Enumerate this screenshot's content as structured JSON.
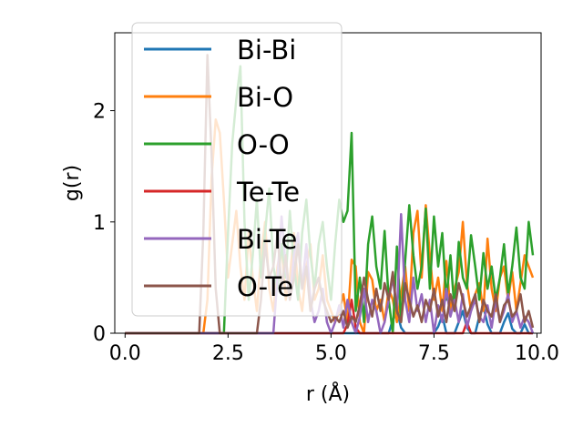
{
  "chart_data": {
    "type": "line",
    "xlabel": "r (Å)",
    "ylabel": "g(r)",
    "xlim": [
      -0.25,
      10.1
    ],
    "ylim": [
      0,
      2.7
    ],
    "xticks": [
      "0.0",
      "2.5",
      "5.0",
      "7.5",
      "10.0"
    ],
    "yticks": [
      "0",
      "1",
      "2"
    ],
    "grid": false,
    "legend_position": "upper-left",
    "x": [
      0.0,
      0.1,
      0.2,
      0.3,
      0.4,
      0.5,
      0.6,
      0.7,
      0.8,
      0.9,
      1.0,
      1.1,
      1.2,
      1.3,
      1.4,
      1.5,
      1.6,
      1.7,
      1.8,
      1.9,
      2.0,
      2.1,
      2.2,
      2.3,
      2.4,
      2.5,
      2.6,
      2.7,
      2.8,
      2.9,
      3.0,
      3.1,
      3.2,
      3.3,
      3.4,
      3.5,
      3.6,
      3.7,
      3.8,
      3.9,
      4.0,
      4.1,
      4.2,
      4.3,
      4.4,
      4.5,
      4.6,
      4.7,
      4.8,
      4.9,
      5.0,
      5.1,
      5.2,
      5.3,
      5.4,
      5.5,
      5.6,
      5.7,
      5.8,
      5.9,
      6.0,
      6.1,
      6.2,
      6.3,
      6.4,
      6.5,
      6.6,
      6.7,
      6.8,
      6.9,
      7.0,
      7.1,
      7.2,
      7.3,
      7.4,
      7.5,
      7.6,
      7.7,
      7.8,
      7.9,
      8.0,
      8.1,
      8.2,
      8.3,
      8.4,
      8.5,
      8.6,
      8.7,
      8.8,
      8.9,
      9.0,
      9.1,
      9.2,
      9.3,
      9.4,
      9.5,
      9.6,
      9.7,
      9.8,
      9.9
    ],
    "series": [
      {
        "name": "Bi-Bi",
        "color": "#1f77b4",
        "values": [
          0,
          0,
          0,
          0,
          0,
          0,
          0,
          0,
          0,
          0,
          0,
          0,
          0,
          0,
          0,
          0,
          0,
          0,
          0,
          0,
          0,
          0,
          0,
          0,
          0,
          0,
          0,
          0,
          0,
          0,
          0,
          0,
          0,
          0,
          0,
          0,
          0,
          0,
          0,
          0,
          0,
          0,
          0,
          0,
          0,
          0,
          0,
          0,
          0,
          0,
          0,
          0,
          0,
          0,
          0,
          0,
          0,
          0,
          0,
          0,
          0,
          0,
          0,
          0,
          0,
          0.12,
          0.2,
          0.05,
          0,
          0,
          0,
          0,
          0,
          0,
          0,
          0,
          0.06,
          0.16,
          0,
          0,
          0,
          0.1,
          0.2,
          0.05,
          0,
          0,
          0.15,
          0.24,
          0.08,
          0,
          0,
          0,
          0.1,
          0.18,
          0.04,
          0,
          0,
          0.08,
          0,
          0
        ]
      },
      {
        "name": "Bi-O",
        "color": "#ff7f0e",
        "values": [
          0,
          0,
          0,
          0,
          0,
          0,
          0,
          0,
          0,
          0,
          0,
          0,
          0,
          0,
          0,
          0,
          0,
          0,
          0,
          0,
          0.3,
          1.4,
          1.92,
          1.8,
          1.2,
          0.5,
          0.8,
          1.1,
          0.6,
          0.3,
          0.9,
          0.5,
          0.2,
          0.7,
          1.0,
          0.4,
          0.2,
          0.6,
          0.8,
          0.3,
          0.5,
          0.9,
          0.4,
          0.2,
          0.6,
          0.8,
          0.3,
          0.4,
          0.7,
          0.3,
          0.2,
          0.1,
          0.2,
          0.35,
          0.1,
          0.66,
          0.6,
          0.1,
          0,
          0.55,
          0.48,
          0.2,
          0.3,
          0.1,
          0.4,
          0.3,
          0.1,
          0.35,
          0.6,
          0.2,
          0.9,
          1.1,
          0.5,
          1.15,
          0.7,
          0.3,
          0.5,
          0.2,
          0.65,
          0.2,
          0.4,
          0.55,
          1.0,
          0.45,
          0.2,
          0.35,
          0.45,
          0.2,
          0.85,
          0.4,
          0.2,
          0.5,
          0.6,
          0.3,
          0.55,
          0.2,
          0.45,
          0.7,
          0.6,
          0.5
        ]
      },
      {
        "name": "O-O",
        "color": "#2ca02c",
        "values": [
          0,
          0,
          0,
          0,
          0,
          0,
          0,
          0,
          0,
          0,
          0,
          0,
          0,
          0,
          0,
          0,
          0,
          0,
          0,
          0,
          0,
          0,
          0,
          0,
          0,
          0.9,
          1.7,
          2.1,
          2.4,
          1.0,
          0.3,
          0.7,
          1.2,
          0.5,
          0.9,
          1.3,
          0.6,
          0.4,
          0.8,
          0.5,
          1.1,
          0.6,
          0.3,
          0.9,
          1.2,
          0.7,
          0.4,
          0.8,
          1.0,
          0.6,
          0.3,
          0.8,
          1.2,
          1.0,
          1.1,
          1.8,
          0.2,
          0.5,
          0.1,
          0.8,
          1.05,
          0.6,
          0.4,
          0.92,
          0.3,
          0.0,
          0.78,
          0.1,
          0.65,
          1.15,
          0.7,
          0.4,
          0.6,
          1.12,
          0.4,
          1.05,
          0.6,
          0.9,
          0.3,
          0.7,
          0.2,
          0.82,
          0.5,
          0.4,
          0.88,
          0.6,
          0.3,
          0.72,
          0.4,
          0.6,
          0.3,
          0.5,
          0.8,
          0.35,
          0.6,
          0.95,
          0.5,
          0.4,
          1.0,
          0.7
        ]
      },
      {
        "name": "Te-Te",
        "color": "#d62728",
        "values": [
          0,
          0,
          0,
          0,
          0,
          0,
          0,
          0,
          0,
          0,
          0,
          0,
          0,
          0,
          0,
          0,
          0,
          0,
          0,
          0,
          0,
          0,
          0,
          0,
          0,
          0,
          0,
          0,
          0,
          0,
          0,
          0,
          0,
          0,
          0,
          0,
          0,
          0,
          0,
          0,
          0,
          0,
          0,
          0,
          0,
          0,
          0,
          0,
          0,
          0,
          0,
          0,
          0,
          0,
          0.08,
          0.3,
          0.05,
          0,
          0,
          0,
          0,
          0,
          0,
          0,
          0,
          0,
          0,
          0,
          0,
          0,
          0,
          0,
          0,
          0,
          0,
          0,
          0,
          0,
          0,
          0,
          0,
          0,
          0,
          0.1,
          0,
          0,
          0,
          0,
          0,
          0,
          0,
          0,
          0,
          0,
          0,
          0,
          0,
          0,
          0,
          0
        ]
      },
      {
        "name": "Bi-Te",
        "color": "#9467bd",
        "values": [
          0,
          0,
          0,
          0,
          0,
          0,
          0,
          0,
          0,
          0,
          0,
          0,
          0,
          0,
          0,
          0,
          0,
          0,
          0,
          0,
          0,
          0,
          0,
          0,
          0,
          0,
          0,
          0,
          0,
          0,
          0,
          0,
          0,
          0,
          0,
          0,
          0,
          0.5,
          1.05,
          0.6,
          0.3,
          0.7,
          0.9,
          0.4,
          0.8,
          0.3,
          0.1,
          0.2,
          0.4,
          0.1,
          0.0,
          0.1,
          0.25,
          0.05,
          0.3,
          0.1,
          0,
          0.15,
          0.4,
          0.1,
          0.3,
          0.2,
          0,
          0.1,
          0.3,
          0.5,
          0.2,
          1.07,
          0.3,
          0.1,
          0.5,
          0.2,
          0.35,
          0.1,
          0.3,
          0.0,
          0.25,
          0.1,
          0.4,
          0.15,
          0.3,
          0.1,
          0.35,
          0.05,
          0.2,
          0.3,
          0.15,
          0.1,
          0.25,
          0.05,
          0.3,
          0.1,
          0.2,
          0.35,
          0.1,
          0.2,
          0.05,
          0.15,
          0.1,
          0.0
        ]
      },
      {
        "name": "O-Te",
        "color": "#8c564b",
        "values": [
          0,
          0,
          0,
          0,
          0,
          0,
          0,
          0,
          0,
          0,
          0,
          0,
          0,
          0,
          0,
          0,
          0,
          0,
          0,
          0.9,
          2.5,
          1.6,
          0.4,
          0,
          0,
          0,
          0,
          0,
          0,
          0,
          0,
          0,
          0,
          0.3,
          0.8,
          0.5,
          0.6,
          0.9,
          0.4,
          0.7,
          0.3,
          0.5,
          0.8,
          0.4,
          0.6,
          0.2,
          0.4,
          0.5,
          0.3,
          0.2,
          0.1,
          0.15,
          0.1,
          0.2,
          0.05,
          0.15,
          0.1,
          0.25,
          0.5,
          0.3,
          0.15,
          0.4,
          0.2,
          0.45,
          0.3,
          0.55,
          0.2,
          0.1,
          0.45,
          0.3,
          0.15,
          0.25,
          0.1,
          0.3,
          0.2,
          0.4,
          0.15,
          0.3,
          0.1,
          0.35,
          0.2,
          0.45,
          0.3,
          0.15,
          0.25,
          0.35,
          0.1,
          0.3,
          0.2,
          0.15,
          0.35,
          0.1,
          0.25,
          0.3,
          0.15,
          0.2,
          0.35,
          0.1,
          0.2,
          0.05
        ]
      }
    ]
  }
}
